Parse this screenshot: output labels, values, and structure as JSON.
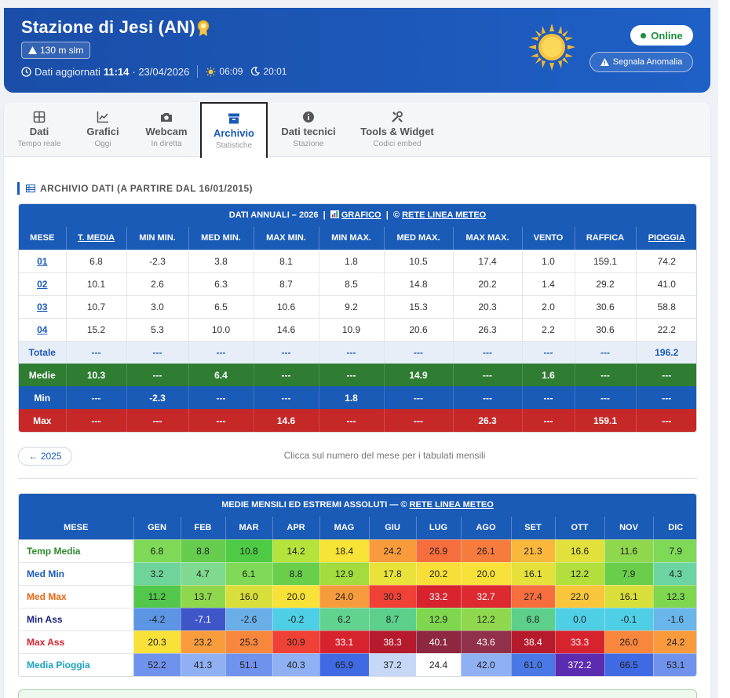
{
  "header": {
    "title": "Stazione di Jesi (AN)",
    "altitude": "130 m slm",
    "updated_label": "Dati aggiornati",
    "updated_time": "11:14",
    "updated_date": "· 23/04/2026",
    "sunrise": "06:09",
    "sunset": "20:01",
    "status": "Online",
    "report_button": "Segnala Anomalia"
  },
  "tabs": [
    {
      "label": "Dati",
      "sub": "Tempo reale",
      "icon": "grid-icon"
    },
    {
      "label": "Grafici",
      "sub": "Oggi",
      "icon": "chart-line-icon"
    },
    {
      "label": "Webcam",
      "sub": "In diretta",
      "icon": "camera-icon"
    },
    {
      "label": "Archivio",
      "sub": "Statistiche",
      "icon": "archive-icon",
      "active": true
    },
    {
      "label": "Dati tecnici",
      "sub": "Stazione",
      "icon": "info-icon"
    },
    {
      "label": "Tools & Widget",
      "sub": "Codici embed",
      "icon": "tools-icon"
    }
  ],
  "archive": {
    "section_title": "ARCHIVIO DATI (A PARTIRE DAL 16/01/2015)",
    "annual_title_prefix": "DATI ANNUALI – 2026",
    "annual_chart_link": "GRAFICO",
    "annual_source_prefix": "©",
    "annual_source_link": "RETE LINEA METEO",
    "columns": [
      "MESE",
      "T. MEDIA",
      "MIN MIN.",
      "MED MIN.",
      "MAX MIN.",
      "MIN MAX.",
      "MED MAX.",
      "MAX MAX.",
      "VENTO",
      "RAFFICA",
      "PIOGGIA"
    ],
    "rows": [
      [
        "01",
        "6.8",
        "-2.3",
        "3.8",
        "8.1",
        "1.8",
        "10.5",
        "17.4",
        "1.0",
        "159.1",
        "74.2"
      ],
      [
        "02",
        "10.1",
        "2.6",
        "6.3",
        "8.7",
        "8.5",
        "14.8",
        "20.2",
        "1.4",
        "29.2",
        "41.0"
      ],
      [
        "03",
        "10.7",
        "3.0",
        "6.5",
        "10.6",
        "9.2",
        "15.3",
        "20.3",
        "2.0",
        "30.6",
        "58.8"
      ],
      [
        "04",
        "15.2",
        "5.3",
        "10.0",
        "14.6",
        "10.9",
        "20.6",
        "26.3",
        "2.2",
        "30.6",
        "22.2"
      ]
    ],
    "totale": [
      "Totale",
      "---",
      "---",
      "---",
      "---",
      "---",
      "---",
      "---",
      "---",
      "---",
      "196.2"
    ],
    "medie": [
      "Medie",
      "10.3",
      "---",
      "6.4",
      "---",
      "---",
      "14.9",
      "---",
      "1.6",
      "---",
      "---"
    ],
    "min": [
      "Min",
      "---",
      "-2.3",
      "---",
      "---",
      "1.8",
      "---",
      "---",
      "---",
      "---",
      "---"
    ],
    "max": [
      "Max",
      "---",
      "---",
      "---",
      "14.6",
      "---",
      "---",
      "26.3",
      "---",
      "159.1",
      "---"
    ],
    "prev_year_button": "← 2025",
    "hint": "Clicca sul numero del mese per i tabulati mensili"
  },
  "monthly": {
    "title_prefix": "MEDIE MENSILI ED ESTREMI ASSOLUTI — ©",
    "title_link": "RETE LINEA METEO",
    "columns": [
      "MESE",
      "GEN",
      "FEB",
      "MAR",
      "APR",
      "MAG",
      "GIU",
      "LUG",
      "AGO",
      "SET",
      "OTT",
      "NOV",
      "DIC"
    ],
    "rows": [
      {
        "label": "Temp Media",
        "label_color": "#2e8b2e",
        "values": [
          "6.8",
          "8.8",
          "10.8",
          "14.2",
          "18.4",
          "24.2",
          "26.9",
          "26.1",
          "21.3",
          "16.6",
          "11.6",
          "7.9"
        ],
        "colors": [
          "#7ed957",
          "#66cc4d",
          "#4ecb44",
          "#b6e23c",
          "#f7e436",
          "#f99b3c",
          "#f66e3e",
          "#f77b3d",
          "#f9b83c",
          "#e2e03a",
          "#8fd84e",
          "#7ed957"
        ]
      },
      {
        "label": "Med Min",
        "label_color": "#1a5bb8",
        "values": [
          "3.2",
          "4.7",
          "6.1",
          "8.8",
          "12.9",
          "17.8",
          "20.2",
          "20.0",
          "16.1",
          "12.2",
          "7.9",
          "4.3"
        ],
        "colors": [
          "#6fd49a",
          "#7fd98e",
          "#7ed957",
          "#69cf4b",
          "#a3dc3f",
          "#e9e23a",
          "#f8df37",
          "#f8e138",
          "#e6e03a",
          "#b3df3d",
          "#69cf4b",
          "#6bd4a0"
        ]
      },
      {
        "label": "Med Max",
        "label_color": "#e8650f",
        "values": [
          "11.2",
          "13.7",
          "16.0",
          "20.0",
          "24.0",
          "30.3",
          "33.2",
          "32.7",
          "27.4",
          "22.0",
          "16.1",
          "12.3"
        ],
        "colors": [
          "#52c74c",
          "#8fd84e",
          "#d9df3a",
          "#f8e138",
          "#f79c3c",
          "#ef4136",
          "#d7232e",
          "#dd2a31",
          "#f66e3e",
          "#f9c63b",
          "#d9df3a",
          "#7fd64f"
        ]
      },
      {
        "label": "Min Ass",
        "label_color": "#1a237e",
        "values": [
          "-4.2",
          "-7.1",
          "-2.6",
          "-0.2",
          "6.2",
          "8.7",
          "12.9",
          "12.2",
          "6.8",
          "0.0",
          "-0.1",
          "-1.6"
        ],
        "colors": [
          "#5b95e3",
          "#3f56c9",
          "#6aaee8",
          "#4ecfe5",
          "#62d28f",
          "#5ccf8a",
          "#7fd64f",
          "#8fd84e",
          "#5ccf8a",
          "#4ecfe5",
          "#4ecfe5",
          "#6ab5ea"
        ]
      },
      {
        "label": "Max Ass",
        "label_color": "#d7232e",
        "values": [
          "20.3",
          "23.2",
          "25.3",
          "30.9",
          "33.1",
          "38.3",
          "40.1",
          "43.6",
          "38.4",
          "33.3",
          "26.0",
          "24.2"
        ],
        "colors": [
          "#f8e138",
          "#f99c3c",
          "#f7873d",
          "#ef4136",
          "#d7232e",
          "#b51b2c",
          "#8e2840",
          "#91304a",
          "#b51b2c",
          "#d7232e",
          "#f8873d",
          "#f99b3c"
        ]
      },
      {
        "label": "Media Pioggia",
        "label_color": "#1aa3c4",
        "values": [
          "52.2",
          "41.3",
          "51.1",
          "40.3",
          "65.9",
          "37.2",
          "24.4",
          "42.0",
          "61.0",
          "372.2",
          "66.5",
          "53.1"
        ],
        "colors": [
          "#6f92ec",
          "#8fb0f2",
          "#6f92ec",
          "#8fb0f2",
          "#3f6ae4",
          "#c6d7f7",
          "#ffffff",
          "#8fb0f2",
          "#4a78e6",
          "#5b2bb0",
          "#3f6ae4",
          "#6f92ec"
        ]
      }
    ]
  }
}
